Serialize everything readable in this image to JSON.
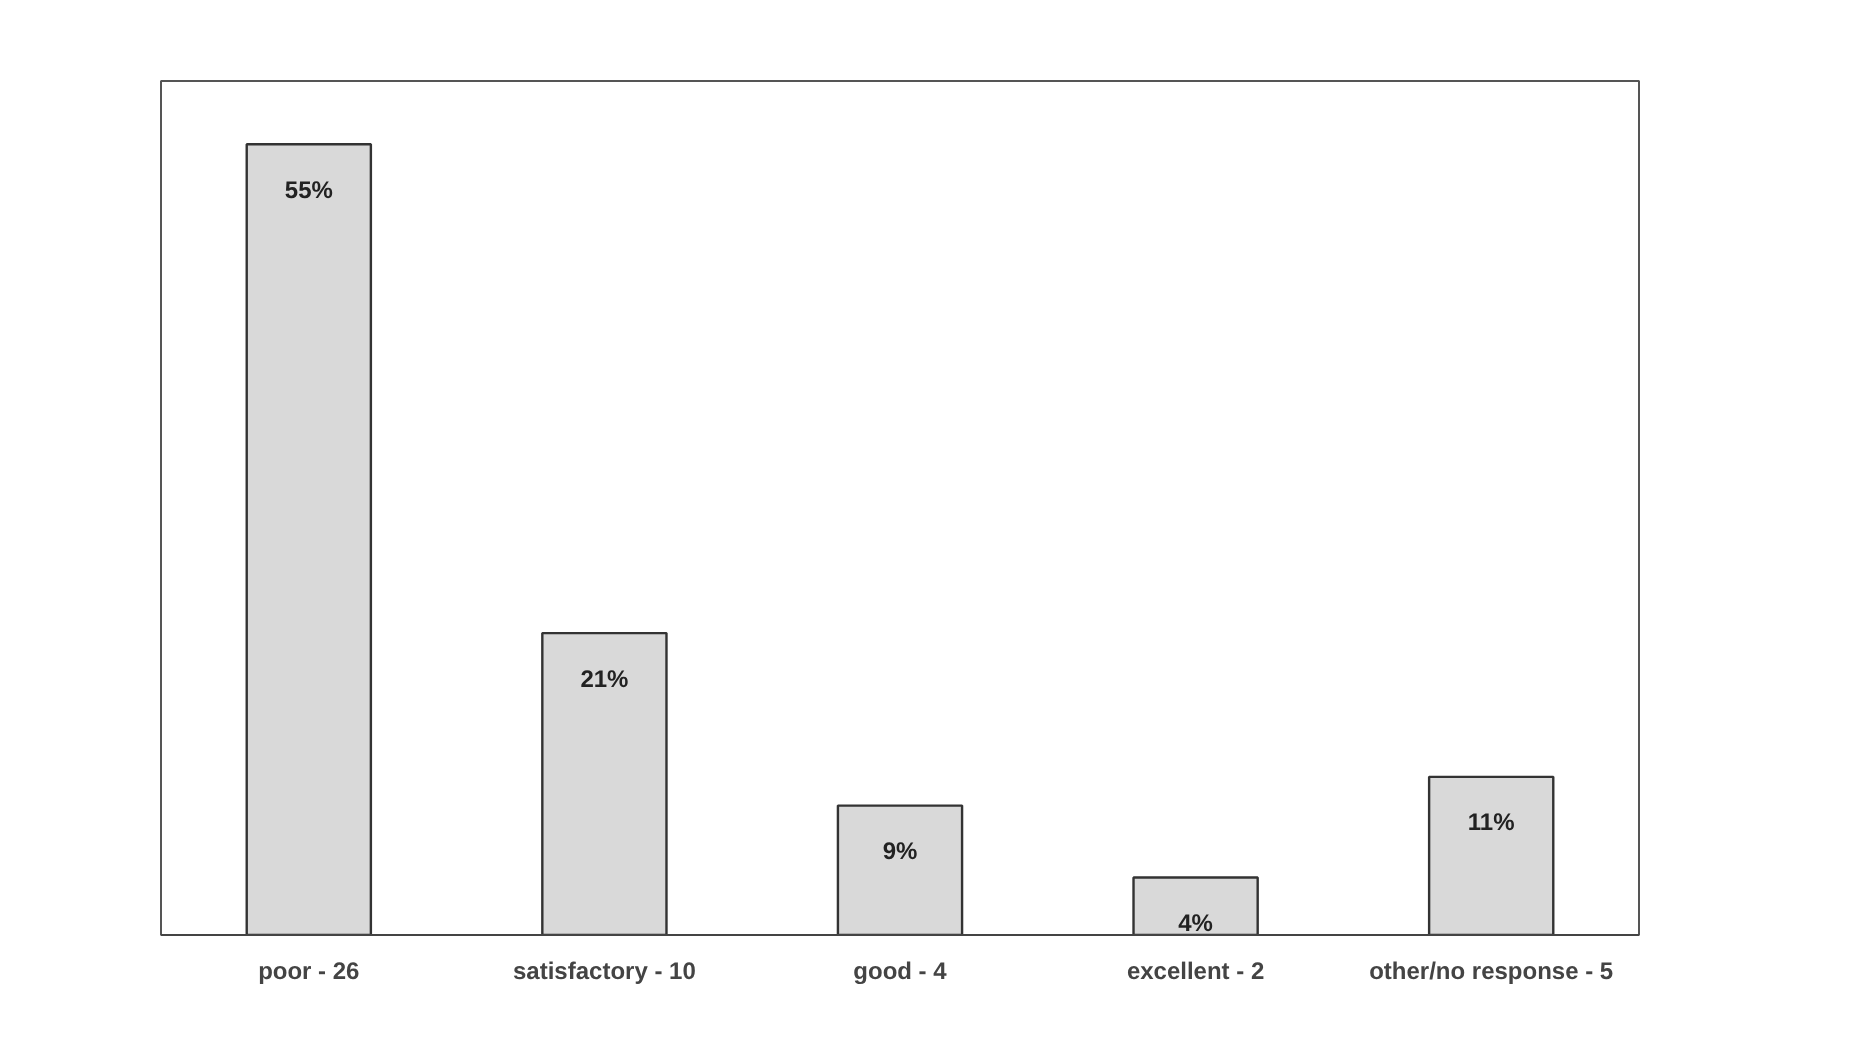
{
  "chart_data": {
    "type": "bar",
    "categories": [
      "poor - 26",
      "satisfactory - 10",
      "good - 4",
      "excellent - 2",
      "other/no response - 5"
    ],
    "values": [
      55,
      21,
      9,
      4,
      11
    ],
    "value_labels": [
      "55%",
      "21%",
      "9%",
      "4%",
      "11%"
    ],
    "color": "#d9d9d9",
    "grid": false
  }
}
